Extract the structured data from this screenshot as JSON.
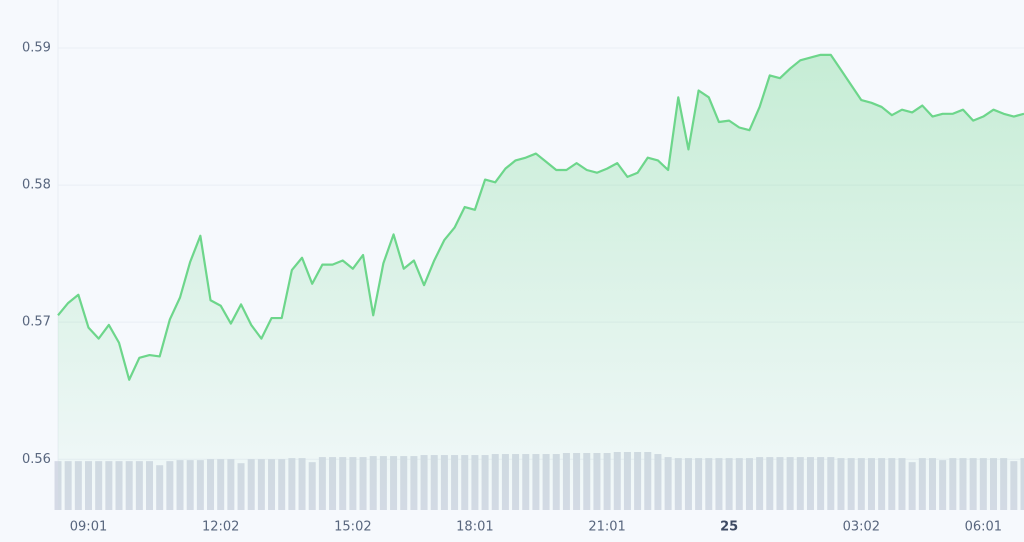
{
  "chart_data": {
    "type": "line",
    "categories": [
      null,
      null,
      null,
      "09:01",
      null,
      null,
      null,
      null,
      null,
      null,
      null,
      null,
      null,
      null,
      null,
      null,
      "12:02",
      null,
      null,
      null,
      null,
      null,
      null,
      null,
      null,
      null,
      null,
      null,
      null,
      "15:02",
      null,
      null,
      null,
      null,
      null,
      null,
      null,
      null,
      null,
      null,
      null,
      "18:01",
      null,
      null,
      null,
      null,
      null,
      null,
      null,
      null,
      null,
      null,
      null,
      null,
      "21:01",
      null,
      null,
      null,
      null,
      null,
      null,
      null,
      null,
      null,
      null,
      null,
      "25",
      null,
      null,
      null,
      null,
      null,
      null,
      null,
      null,
      null,
      null,
      null,
      null,
      "03:02",
      null,
      null,
      null,
      null,
      null,
      null,
      null,
      null,
      null,
      null,
      null,
      "06:01",
      null,
      null,
      null,
      null
    ],
    "values": [
      0.5705,
      0.5714,
      0.572,
      0.5696,
      0.5688,
      0.5698,
      0.5685,
      0.5658,
      0.5674,
      0.5676,
      0.5675,
      0.5702,
      0.5718,
      0.5744,
      0.5763,
      0.5716,
      0.5712,
      0.5699,
      0.5713,
      0.5698,
      0.5688,
      0.5703,
      0.5703,
      0.5738,
      0.5747,
      0.5728,
      0.5742,
      0.5742,
      0.5745,
      0.5739,
      0.5749,
      0.5705,
      0.5743,
      0.5764,
      0.5739,
      0.5745,
      0.5727,
      0.5745,
      0.576,
      0.5769,
      0.5784,
      0.5782,
      0.5804,
      0.5802,
      0.5812,
      0.5818,
      0.582,
      0.5823,
      0.5817,
      0.5811,
      0.5811,
      0.5816,
      0.5811,
      0.5809,
      0.5812,
      0.5816,
      0.5806,
      0.5809,
      0.582,
      0.5818,
      0.5811,
      0.5864,
      0.5826,
      0.5869,
      0.5864,
      0.5846,
      0.5847,
      0.5842,
      0.584,
      0.5857,
      0.588,
      0.5878,
      0.5885,
      0.5891,
      0.5893,
      0.5895,
      0.5895,
      0.5884,
      0.5873,
      0.5862,
      0.586,
      0.5857,
      0.5851,
      0.5855,
      0.5853,
      0.5858,
      0.585,
      0.5852,
      0.5852,
      0.5855,
      0.5847,
      0.585,
      0.5855,
      0.5852,
      0.585,
      0.5852
    ],
    "color": "#6dd68b",
    "volume_values": [
      48,
      48,
      48,
      48,
      48,
      48,
      48,
      48,
      48,
      48,
      44,
      48,
      49,
      49,
      49,
      50,
      50,
      50,
      46,
      50,
      50,
      50,
      50,
      51,
      51,
      47,
      52,
      52,
      52,
      52,
      52,
      53,
      53,
      53,
      53,
      53,
      54,
      54,
      54,
      54,
      54,
      54,
      54,
      55,
      55,
      55,
      55,
      55,
      55,
      55,
      56,
      56,
      56,
      56,
      56,
      57,
      57,
      57,
      57,
      55,
      52,
      51,
      51,
      51,
      51,
      51,
      51,
      51,
      51,
      52,
      52,
      52,
      52,
      52,
      52,
      52,
      52,
      51,
      51,
      51,
      51,
      51,
      51,
      51,
      47,
      51,
      51,
      49,
      51,
      51,
      51,
      51,
      51,
      51,
      48,
      51
    ],
    "volume_color": "#d5dae6",
    "ylim": [
      0.5563,
      0.5935
    ],
    "yticks": [
      0.56,
      0.57,
      0.58,
      0.59
    ],
    "grid": true
  }
}
